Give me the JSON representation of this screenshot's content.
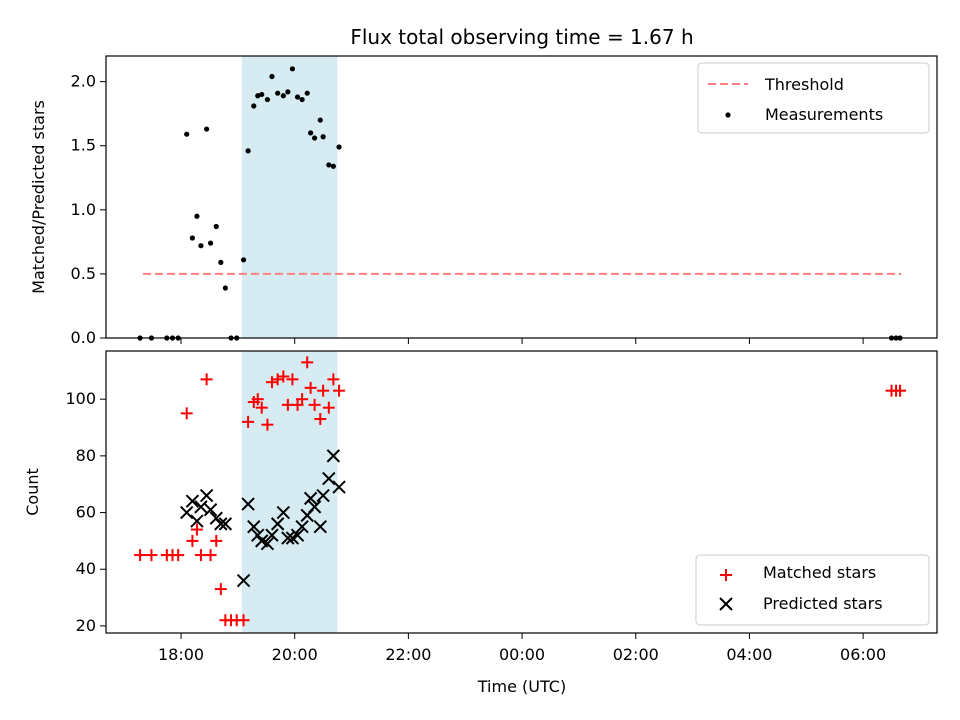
{
  "figure": {
    "title": "Flux total observing time = 1.67 h"
  },
  "chart_data": [
    {
      "type": "scatter",
      "panel": "top",
      "title": "Flux total observing time = 1.67 h",
      "ylabel": "Matched/Predicted stars",
      "ylim": [
        0.0,
        2.2
      ],
      "yticks": [
        0.0,
        0.5,
        1.0,
        1.5,
        2.0
      ],
      "ytick_labels": [
        "0.0",
        "0.5",
        "1.0",
        "1.5",
        "2.0"
      ],
      "xlim_hours": [
        16.68,
        31.3
      ],
      "xticks_hours": [
        18,
        20,
        22,
        24,
        26,
        28,
        30
      ],
      "shaded_span_hours": [
        19.07,
        20.75
      ],
      "shaded_color": "#add8e6",
      "legend": {
        "position": "top-right",
        "entries": [
          "Threshold",
          "Measurements"
        ]
      },
      "threshold": {
        "name": "Threshold",
        "value": 0.5,
        "x_range_hours": [
          17.33,
          30.67
        ],
        "color": "#ff7f7f",
        "style": "dashed"
      },
      "series": [
        {
          "name": "Measurements",
          "color": "#000000",
          "marker": "dot",
          "x_hours": [
            17.28,
            17.48,
            17.75,
            17.85,
            17.95,
            18.1,
            18.2,
            18.28,
            18.35,
            18.45,
            18.52,
            18.62,
            18.7,
            18.78,
            18.88,
            18.98,
            19.1,
            19.18,
            19.28,
            19.35,
            19.42,
            19.52,
            19.6,
            19.7,
            19.8,
            19.88,
            19.96,
            20.05,
            20.13,
            20.22,
            20.28,
            20.35,
            20.45,
            20.5,
            20.6,
            20.68,
            20.78,
            30.5,
            30.58,
            30.65
          ],
          "y": [
            0.0,
            0.0,
            0.0,
            0.0,
            0.0,
            1.59,
            0.78,
            0.95,
            0.72,
            1.63,
            0.74,
            0.87,
            0.59,
            0.39,
            0.0,
            0.0,
            0.61,
            1.46,
            1.81,
            1.89,
            1.9,
            1.86,
            2.04,
            1.91,
            1.89,
            1.92,
            2.1,
            1.88,
            1.86,
            1.91,
            1.6,
            1.56,
            1.7,
            1.57,
            1.35,
            1.34,
            1.49,
            0.0,
            0.0,
            0.0
          ]
        }
      ]
    },
    {
      "type": "scatter",
      "panel": "bottom",
      "xlabel": "Time (UTC)",
      "ylabel": "Count",
      "ylim": [
        17.5,
        117
      ],
      "yticks": [
        20,
        40,
        60,
        80,
        100
      ],
      "ytick_labels": [
        "20",
        "40",
        "60",
        "80",
        "100"
      ],
      "xlim_hours": [
        16.68,
        31.3
      ],
      "xticks_hours": [
        18,
        20,
        22,
        24,
        26,
        28,
        30
      ],
      "xtick_labels": [
        "18:00",
        "20:00",
        "22:00",
        "00:00",
        "02:00",
        "04:00",
        "06:00"
      ],
      "shaded_span_hours": [
        19.07,
        20.75
      ],
      "shaded_color": "#add8e6",
      "legend": {
        "position": "bottom-right",
        "entries": [
          "Matched stars",
          "Predicted stars"
        ]
      },
      "series": [
        {
          "name": "Matched stars",
          "color": "#ff0000",
          "marker": "plus",
          "x_hours": [
            17.28,
            17.48,
            17.75,
            17.85,
            17.95,
            18.1,
            18.2,
            18.28,
            18.35,
            18.45,
            18.52,
            18.62,
            18.7,
            18.78,
            18.88,
            18.98,
            19.1,
            19.18,
            19.28,
            19.35,
            19.42,
            19.52,
            19.6,
            19.7,
            19.8,
            19.88,
            19.96,
            20.05,
            20.13,
            20.22,
            20.28,
            20.35,
            20.45,
            20.5,
            20.6,
            20.68,
            20.78,
            30.5,
            30.58,
            30.65
          ],
          "y": [
            45,
            45,
            45,
            45,
            45,
            95,
            50,
            54,
            45,
            107,
            45,
            50,
            33,
            22,
            22,
            22,
            22,
            92,
            99,
            100,
            97,
            91,
            106,
            107,
            108,
            98,
            107,
            98,
            100,
            113,
            104,
            98,
            93,
            103,
            97,
            107,
            103,
            103,
            103,
            103
          ]
        },
        {
          "name": "Predicted stars",
          "color": "#000000",
          "marker": "x",
          "x_hours": [
            18.1,
            18.2,
            18.28,
            18.35,
            18.45,
            18.52,
            18.62,
            18.7,
            18.78,
            19.1,
            19.18,
            19.28,
            19.35,
            19.42,
            19.52,
            19.6,
            19.7,
            19.8,
            19.88,
            19.96,
            20.05,
            20.13,
            20.22,
            20.28,
            20.35,
            20.45,
            20.5,
            20.6,
            20.68,
            20.78
          ],
          "y": [
            60,
            64,
            57,
            62,
            66,
            61,
            58,
            56,
            56,
            36,
            63,
            55,
            52,
            50,
            49,
            52,
            56,
            60,
            51,
            51,
            52,
            55,
            59,
            65,
            62,
            55,
            66,
            72,
            80,
            69
          ]
        }
      ]
    }
  ]
}
